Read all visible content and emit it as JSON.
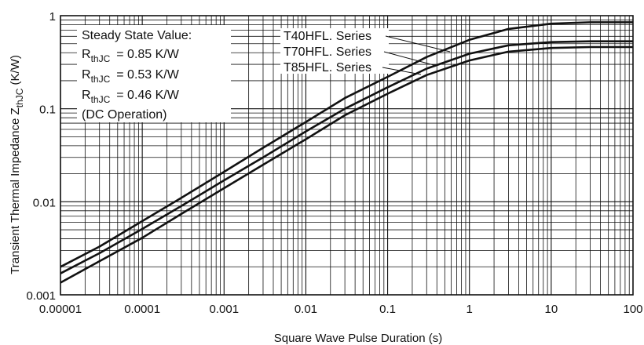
{
  "chart_data": {
    "type": "line",
    "title": "",
    "xlabel": "Square Wave Pulse Duration (s)",
    "ylabel": "Transient Thermal Impedance Z",
    "ylabel_sub": "thJC",
    "ylabel_unit": " (K/W)",
    "x_scale": "log",
    "y_scale": "log",
    "xlim": [
      1e-05,
      100
    ],
    "ylim": [
      0.001,
      1
    ],
    "grid": true,
    "x_ticks": [
      "0.00001",
      "0.0001",
      "0.001",
      "0.01",
      "0.1",
      "1",
      "10",
      "100"
    ],
    "y_ticks": [
      "0.001",
      "0.01",
      "0.1",
      "1"
    ],
    "series": [
      {
        "name": "T40HFL. Series",
        "x": [
          1e-05,
          3e-05,
          0.0001,
          0.0003,
          0.001,
          0.003,
          0.01,
          0.03,
          0.1,
          0.3,
          1,
          3,
          10,
          30,
          100
        ],
        "values": [
          0.002,
          0.0033,
          0.0062,
          0.011,
          0.021,
          0.038,
          0.072,
          0.13,
          0.22,
          0.36,
          0.55,
          0.72,
          0.82,
          0.85,
          0.85
        ]
      },
      {
        "name": "T70HFL. Series",
        "x": [
          1e-05,
          3e-05,
          0.0001,
          0.0003,
          0.001,
          0.003,
          0.01,
          0.03,
          0.1,
          0.3,
          1,
          3,
          10,
          30,
          100
        ],
        "values": [
          0.0017,
          0.0028,
          0.0051,
          0.009,
          0.017,
          0.03,
          0.057,
          0.1,
          0.17,
          0.27,
          0.39,
          0.48,
          0.52,
          0.53,
          0.53
        ]
      },
      {
        "name": "T85HFL. Series",
        "x": [
          1e-05,
          3e-05,
          0.0001,
          0.0003,
          0.001,
          0.003,
          0.01,
          0.03,
          0.1,
          0.3,
          1,
          3,
          10,
          30,
          100
        ],
        "values": [
          0.00135,
          0.0023,
          0.0041,
          0.0074,
          0.014,
          0.025,
          0.047,
          0.085,
          0.145,
          0.23,
          0.33,
          0.41,
          0.45,
          0.46,
          0.46
        ]
      }
    ],
    "note": {
      "line1": "Steady State Value:",
      "r_symbol": "R",
      "r_sub": "thJC",
      "r_values": [
        "= 0.85 K/W",
        "= 0.53 K/W",
        "= 0.46 K/W"
      ],
      "line5": "(DC Operation)"
    },
    "line_color": "#111111",
    "grid_color": "#111111"
  }
}
